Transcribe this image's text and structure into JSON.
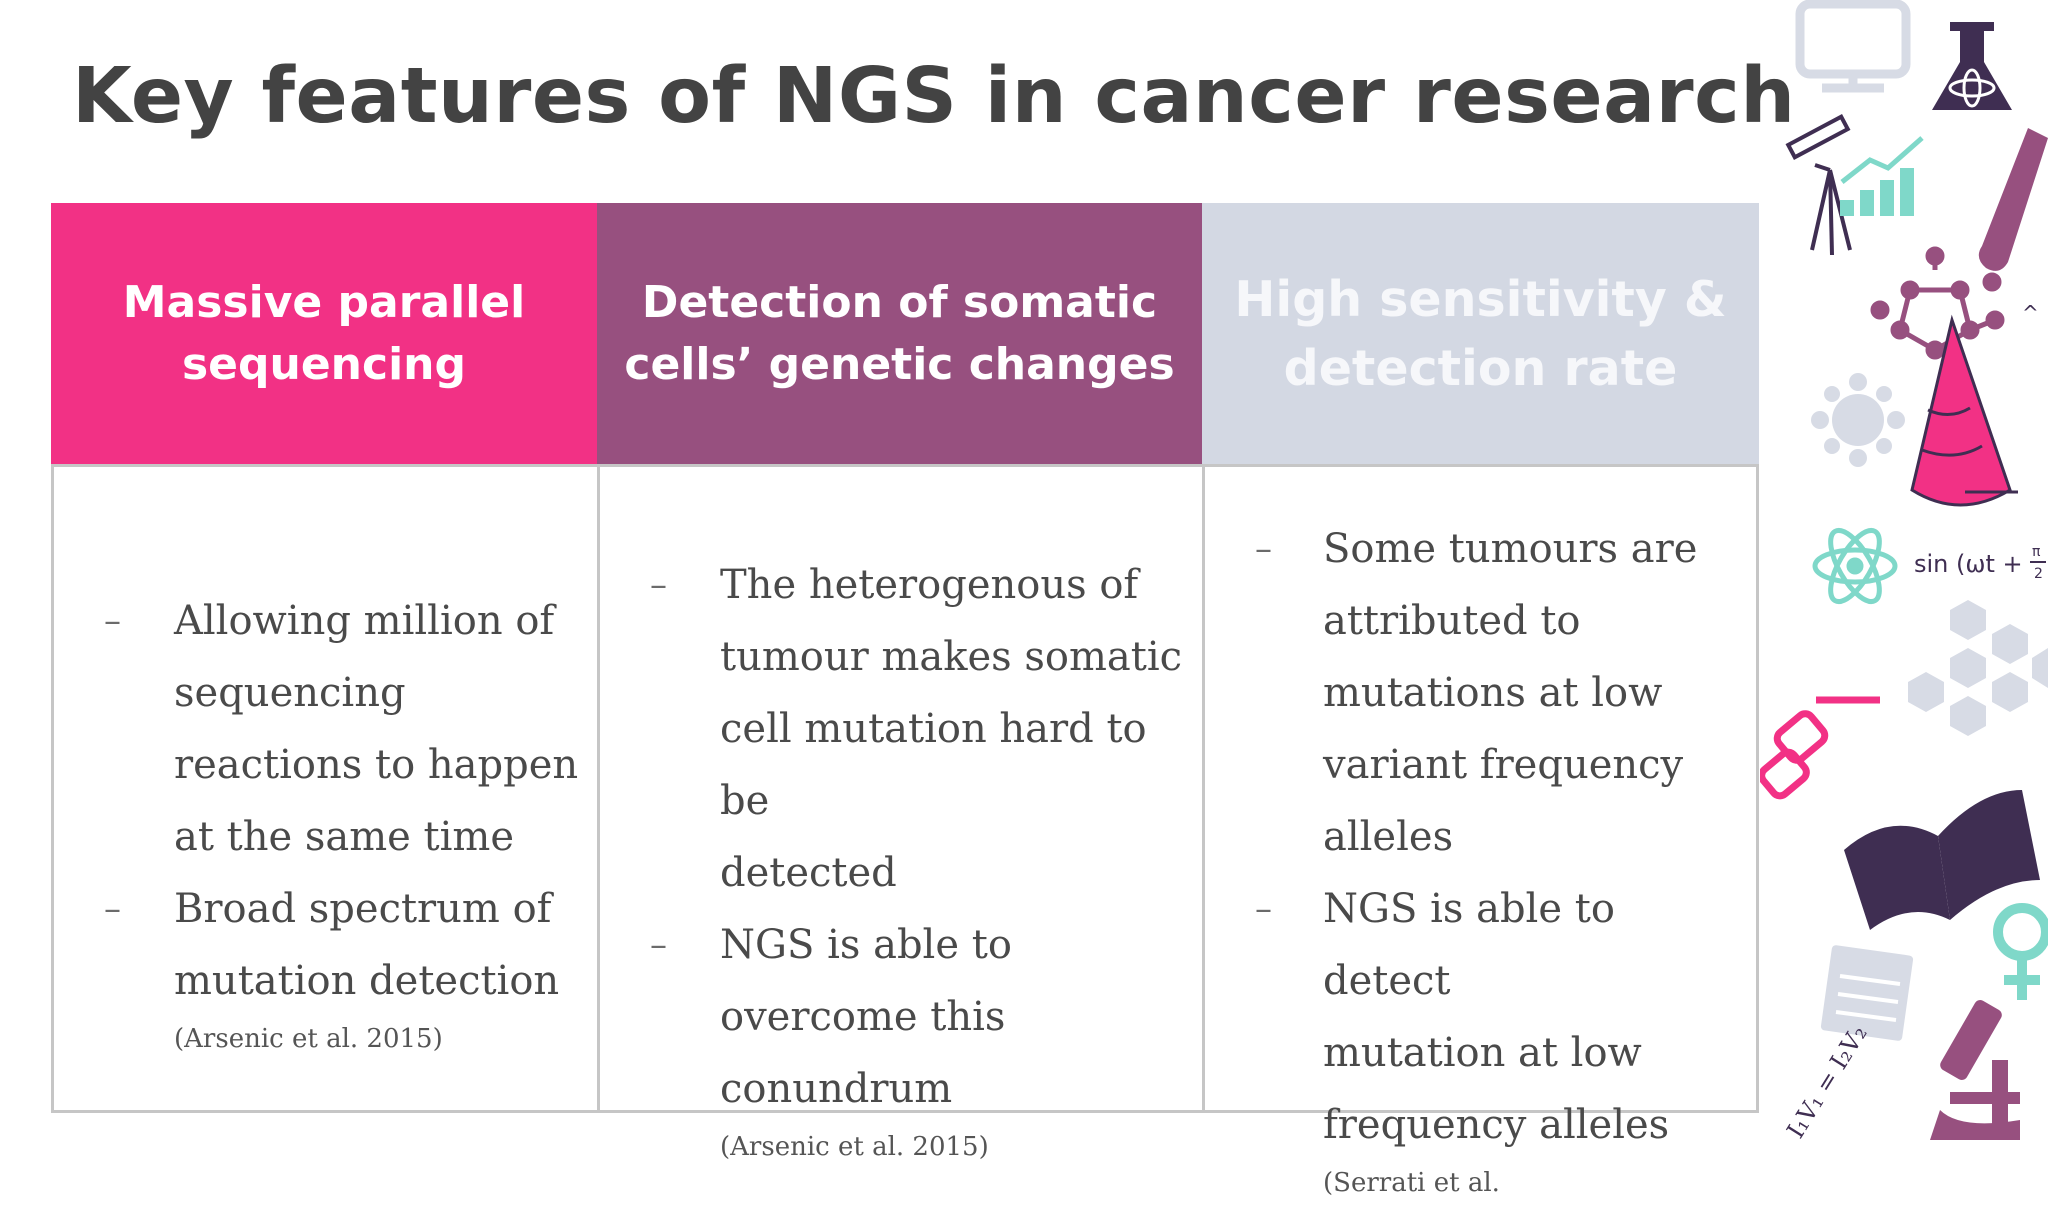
{
  "title": "Key features of NGS in cancer research",
  "columns": [
    {
      "header_lines": [
        "Massive parallel",
        "sequencing"
      ],
      "bullets": [
        [
          "Allowing million of",
          "sequencing",
          "reactions to happen",
          "at the same time"
        ],
        [
          "Broad spectrum of",
          "mutation detection"
        ]
      ],
      "citation": "(Arsenic et al. 2015)"
    },
    {
      "header_lines": [
        "Detection of somatic",
        "cells’ genetic changes"
      ],
      "bullets": [
        [
          "The heterogenous of",
          "tumour makes somatic",
          "cell mutation hard to be",
          "detected"
        ],
        [
          "NGS is able to",
          "overcome this",
          "conundrum"
        ]
      ],
      "citation": "(Arsenic et al. 2015)"
    },
    {
      "header_lines": [
        "High sensitivity &",
        "detection rate"
      ],
      "bullets": [
        [
          "Some tumours are",
          "attributed to",
          "mutations at low",
          "variant frequency",
          "alleles"
        ],
        [
          "NGS is able to detect",
          "mutation at low",
          "frequency alleles"
        ]
      ],
      "citation": "(Serrati et al."
    }
  ],
  "bullet_marker": "–",
  "decorations": {
    "formula_sin": "sin (ωt +",
    "formula_pi": "π",
    "formula_two": "2",
    "formula_bottom": "I₁V₁ = I₂V₂",
    "caret": "^"
  },
  "colors": {
    "pink": "#f23185",
    "plum": "#97507f",
    "light_blue_gray": "#d3d8e3",
    "title_gray": "#434343",
    "teal": "#7fd8c9",
    "dark_purple": "#3f2e52"
  }
}
